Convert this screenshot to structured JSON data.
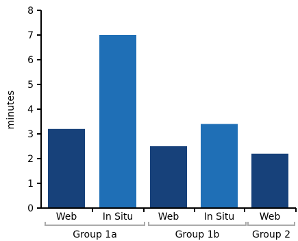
{
  "chart_data": {
    "type": "bar",
    "title": "",
    "ylabel": "minutes",
    "xlabel": "",
    "ylim": [
      0,
      8
    ],
    "yticks": [
      "0",
      "1",
      "2",
      "3",
      "4",
      "5",
      "6",
      "7",
      "8"
    ],
    "grid": false,
    "categories": [
      "Web",
      "In Situ",
      "Web",
      "In Situ",
      "Web"
    ],
    "values": [
      3.2,
      7.0,
      2.5,
      3.4,
      2.2
    ],
    "bar_colors": [
      "#17417a",
      "#1f6fb6",
      "#17417a",
      "#1f6fb6",
      "#17417a"
    ],
    "groups": [
      {
        "label": "Group 1a",
        "members": [
          0,
          1
        ]
      },
      {
        "label": "Group 1b",
        "members": [
          2,
          3
        ]
      },
      {
        "label": "Group 2",
        "members": [
          4
        ]
      }
    ]
  },
  "colors": {
    "web": "#17417a",
    "in_situ": "#1f6fb6",
    "bracket": "#aaaaaa",
    "axis": "#000000"
  }
}
